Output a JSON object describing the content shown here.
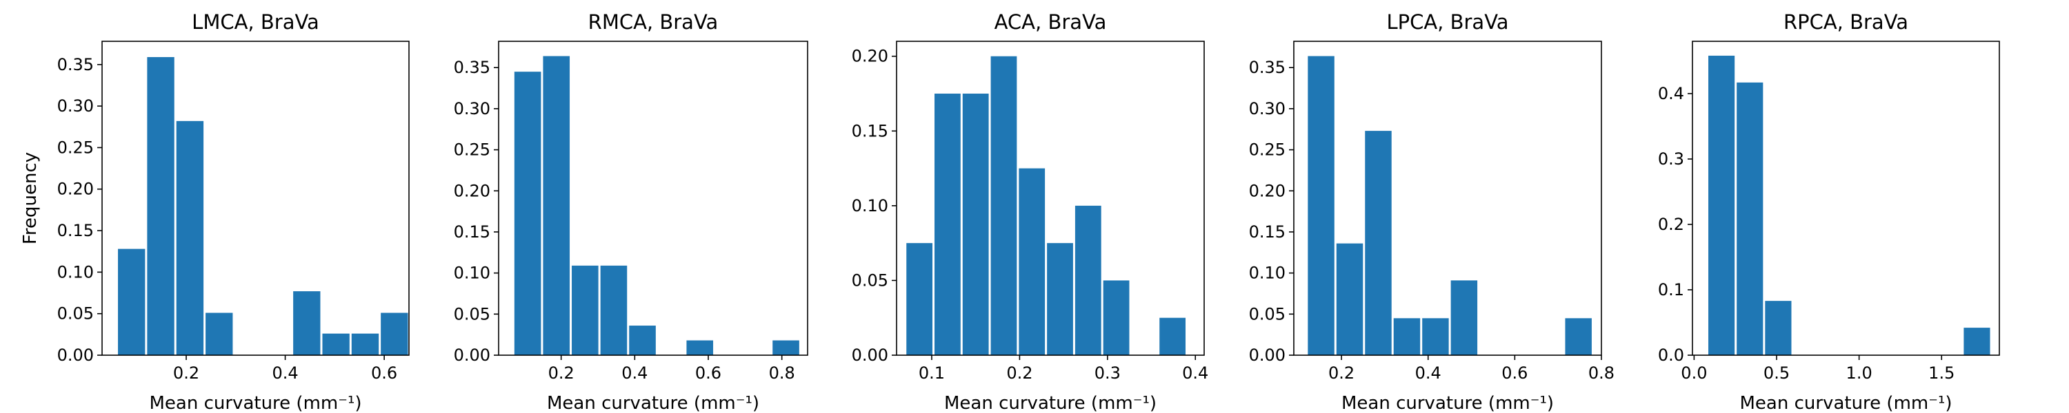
{
  "figure": {
    "ylabel": "Frequency",
    "bar_color": "#1f77b4"
  },
  "chart_data": [
    {
      "type": "bar",
      "title": "LMCA, BraVa",
      "xlabel": "Mean curvature (mm⁻¹)",
      "ylabel": "Frequency",
      "xlim": [
        0.03,
        0.65
      ],
      "ylim": [
        0,
        0.378
      ],
      "xticks": [
        0.2,
        0.4,
        0.6
      ],
      "xtick_labels": [
        "0.2",
        "0.4",
        "0.6"
      ],
      "yticks": [
        0,
        0.05,
        0.1,
        0.15,
        0.2,
        0.25,
        0.3,
        0.35
      ],
      "ytick_labels": [
        "0.00",
        "0.05",
        "0.10",
        "0.15",
        "0.20",
        "0.25",
        "0.30",
        "0.35"
      ],
      "bin_edges": [
        0.06,
        0.119,
        0.178,
        0.237,
        0.296,
        0.355,
        0.414,
        0.473,
        0.532,
        0.591,
        0.65
      ],
      "values": [
        0.128,
        0.359,
        0.282,
        0.051,
        0,
        0,
        0.077,
        0.026,
        0.026,
        0.051
      ],
      "grid": false
    },
    {
      "type": "bar",
      "title": "RMCA, BraVa",
      "xlabel": "Mean curvature (mm⁻¹)",
      "ylabel": "",
      "xlim": [
        0.03,
        0.87
      ],
      "ylim": [
        0,
        0.382
      ],
      "xticks": [
        0.2,
        0.4,
        0.6,
        0.8
      ],
      "xtick_labels": [
        "0.2",
        "0.4",
        "0.6",
        "0.8"
      ],
      "yticks": [
        0,
        0.05,
        0.1,
        0.15,
        0.2,
        0.25,
        0.3,
        0.35
      ],
      "ytick_labels": [
        "0.00",
        "0.05",
        "0.10",
        "0.15",
        "0.20",
        "0.25",
        "0.30",
        "0.35"
      ],
      "bin_edges": [
        0.07,
        0.148,
        0.226,
        0.304,
        0.382,
        0.46,
        0.538,
        0.616,
        0.694,
        0.772,
        0.85
      ],
      "values": [
        0.345,
        0.364,
        0.109,
        0.109,
        0.036,
        0,
        0.018,
        0,
        0,
        0.018
      ],
      "grid": false
    },
    {
      "type": "bar",
      "title": "ACA, BraVa",
      "xlabel": "Mean curvature (mm⁻¹)",
      "ylabel": "",
      "xlim": [
        0.06,
        0.41
      ],
      "ylim": [
        0,
        0.21
      ],
      "xticks": [
        0.1,
        0.2,
        0.3,
        0.4
      ],
      "xtick_labels": [
        "0.1",
        "0.2",
        "0.3",
        "0.4"
      ],
      "yticks": [
        0,
        0.05,
        0.1,
        0.15,
        0.2
      ],
      "ytick_labels": [
        "0.00",
        "0.05",
        "0.10",
        "0.15",
        "0.20"
      ],
      "bin_edges": [
        0.07,
        0.102,
        0.134,
        0.166,
        0.198,
        0.23,
        0.262,
        0.294,
        0.326,
        0.358,
        0.39
      ],
      "values": [
        0.075,
        0.175,
        0.175,
        0.2,
        0.125,
        0.075,
        0.1,
        0.05,
        0,
        0.025
      ],
      "grid": false
    },
    {
      "type": "bar",
      "title": "LPCA, BraVa",
      "xlabel": "Mean curvature (mm⁻¹)",
      "ylabel": "",
      "xlim": [
        0.09,
        0.8
      ],
      "ylim": [
        0,
        0.382
      ],
      "xticks": [
        0.2,
        0.4,
        0.6,
        0.8
      ],
      "xtick_labels": [
        "0.2",
        "0.4",
        "0.6",
        "0.8"
      ],
      "yticks": [
        0,
        0.05,
        0.1,
        0.15,
        0.2,
        0.25,
        0.3,
        0.35
      ],
      "ytick_labels": [
        "0.00",
        "0.05",
        "0.10",
        "0.15",
        "0.20",
        "0.25",
        "0.30",
        "0.35"
      ],
      "bin_edges": [
        0.12,
        0.186,
        0.252,
        0.318,
        0.384,
        0.45,
        0.516,
        0.582,
        0.648,
        0.714,
        0.78
      ],
      "values": [
        0.364,
        0.136,
        0.273,
        0.045,
        0.045,
        0.091,
        0,
        0,
        0,
        0.045
      ],
      "grid": false
    },
    {
      "type": "bar",
      "title": "RPCA, BraVa",
      "xlabel": "Mean curvature (mm⁻¹)",
      "ylabel": "",
      "xlim": [
        -0.01,
        1.85
      ],
      "ylim": [
        0,
        0.48
      ],
      "xticks": [
        0,
        0.5,
        1.0,
        1.5
      ],
      "xtick_labels": [
        "0.0",
        "0.5",
        "1.0",
        "1.5"
      ],
      "yticks": [
        0,
        0.1,
        0.2,
        0.3,
        0.4
      ],
      "ytick_labels": [
        "0.0",
        "0.1",
        "0.2",
        "0.3",
        "0.4"
      ],
      "bin_edges": [
        0.08,
        0.252,
        0.424,
        0.596,
        0.768,
        0.94,
        1.112,
        1.284,
        1.456,
        1.628,
        1.8
      ],
      "values": [
        0.458,
        0.417,
        0.083,
        0,
        0,
        0,
        0,
        0,
        0,
        0.042
      ],
      "grid": false
    }
  ]
}
